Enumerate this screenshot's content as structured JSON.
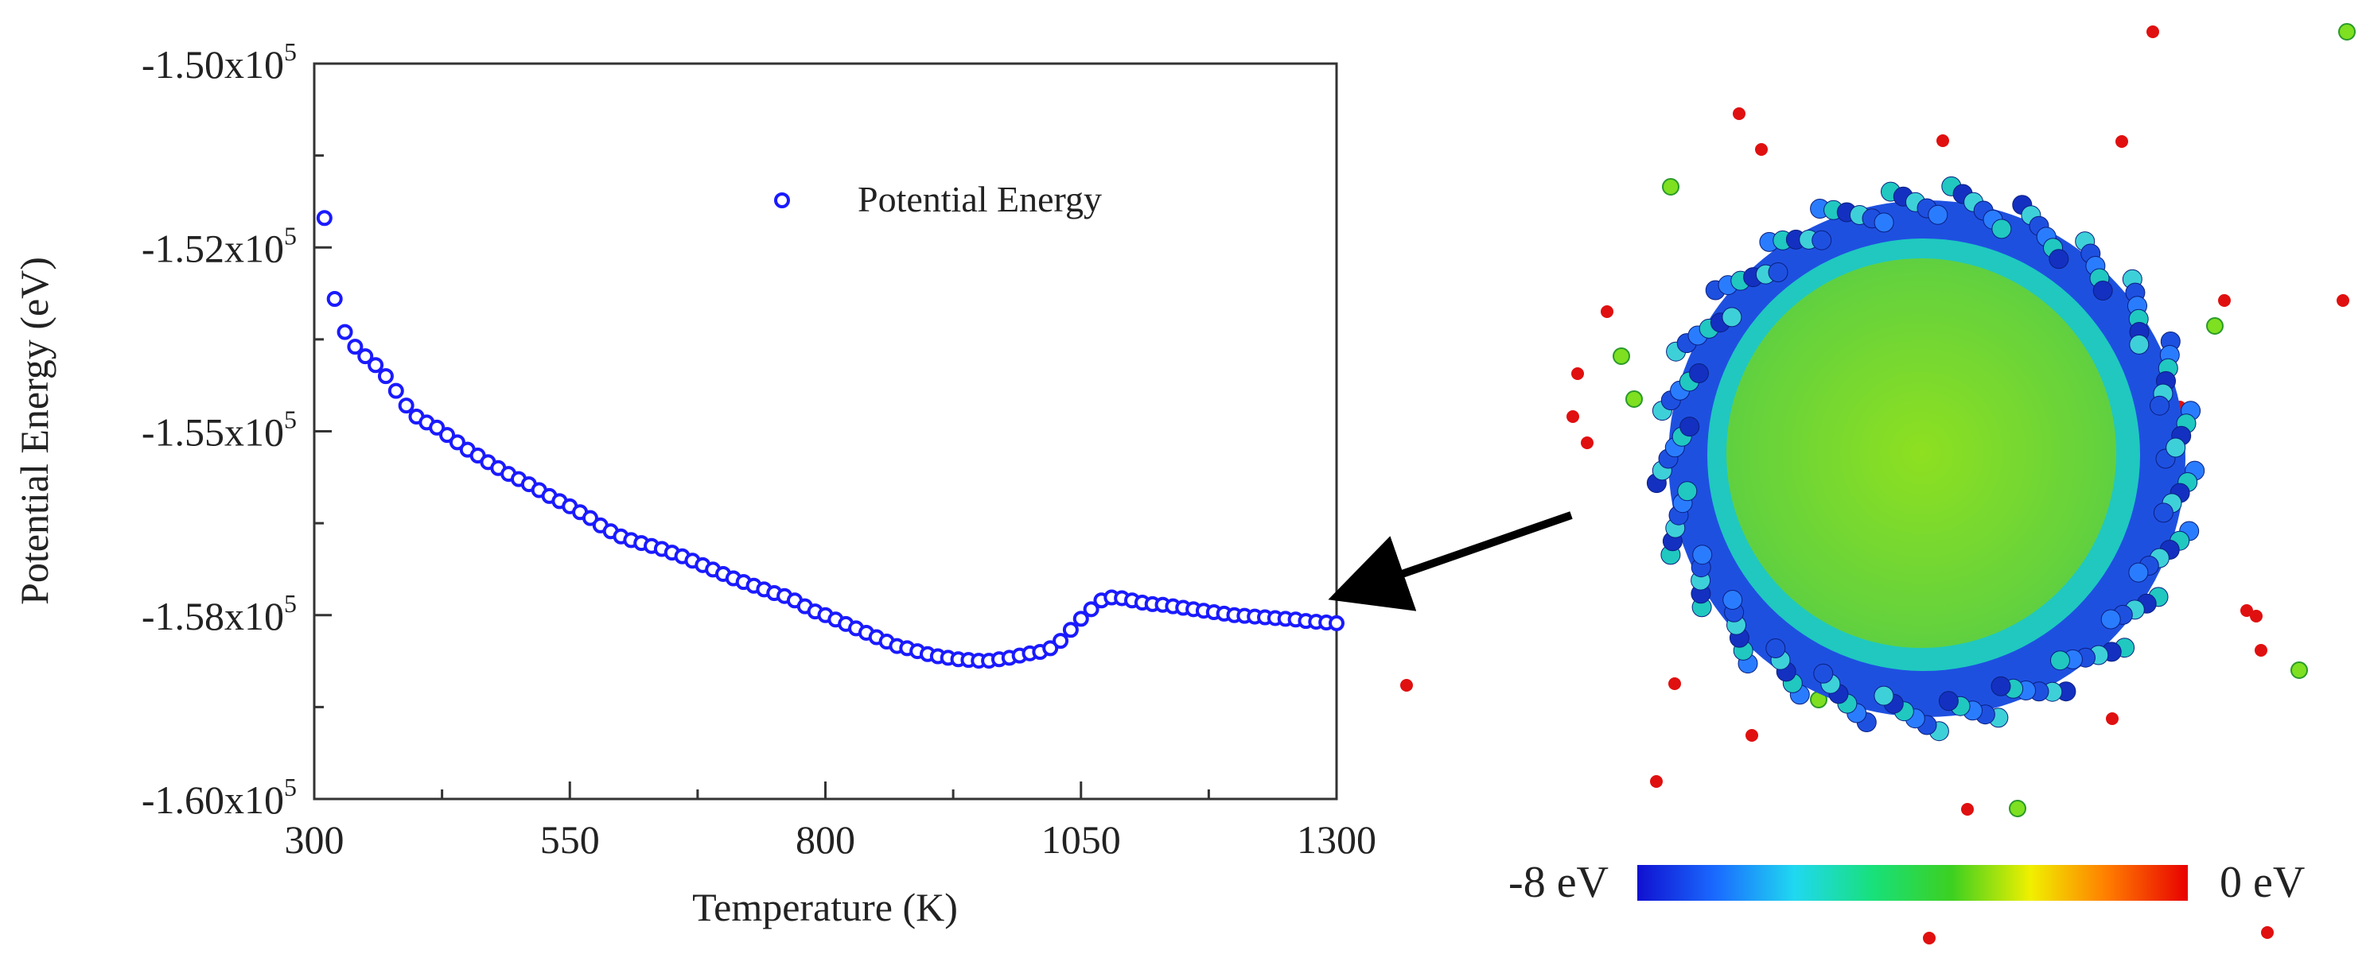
{
  "chart_data": {
    "type": "scatter",
    "xlabel": "Temperature (K)",
    "ylabel": "Potential Energy (eV)",
    "xlim": [
      300,
      1300
    ],
    "ylim": [
      -160000,
      -150000
    ],
    "xticks": [
      "300",
      "550",
      "800",
      "1050",
      "1300"
    ],
    "yticks": [
      {
        "value": -150000,
        "mantissa": "-1.50x10",
        "exp": "5"
      },
      {
        "value": -152500,
        "mantissa": "-1.52x10",
        "exp": "5"
      },
      {
        "value": -155000,
        "mantissa": "-1.55x10",
        "exp": "5"
      },
      {
        "value": -157500,
        "mantissa": "-1.58x10",
        "exp": "5"
      },
      {
        "value": -160000,
        "mantissa": "-1.60x10",
        "exp": "5"
      }
    ],
    "legend": {
      "label": "Potential Energy",
      "position": "top-right"
    },
    "series": [
      {
        "name": "Potential Energy",
        "color": "#1a1aff",
        "points": [
          [
            310,
            -152100
          ],
          [
            320,
            -153200
          ],
          [
            330,
            -153650
          ],
          [
            340,
            -153850
          ],
          [
            350,
            -153980
          ],
          [
            360,
            -154100
          ],
          [
            370,
            -154250
          ],
          [
            380,
            -154450
          ],
          [
            390,
            -154650
          ],
          [
            400,
            -154800
          ],
          [
            410,
            -154880
          ],
          [
            420,
            -154950
          ],
          [
            430,
            -155050
          ],
          [
            440,
            -155150
          ],
          [
            450,
            -155250
          ],
          [
            460,
            -155330
          ],
          [
            470,
            -155420
          ],
          [
            480,
            -155500
          ],
          [
            490,
            -155580
          ],
          [
            500,
            -155650
          ],
          [
            510,
            -155720
          ],
          [
            520,
            -155800
          ],
          [
            530,
            -155880
          ],
          [
            540,
            -155950
          ],
          [
            550,
            -156020
          ],
          [
            560,
            -156100
          ],
          [
            570,
            -156180
          ],
          [
            580,
            -156280
          ],
          [
            590,
            -156360
          ],
          [
            600,
            -156430
          ],
          [
            610,
            -156480
          ],
          [
            620,
            -156520
          ],
          [
            630,
            -156560
          ],
          [
            640,
            -156600
          ],
          [
            650,
            -156650
          ],
          [
            660,
            -156700
          ],
          [
            670,
            -156760
          ],
          [
            680,
            -156820
          ],
          [
            690,
            -156880
          ],
          [
            700,
            -156940
          ],
          [
            710,
            -157000
          ],
          [
            720,
            -157050
          ],
          [
            730,
            -157100
          ],
          [
            740,
            -157150
          ],
          [
            750,
            -157200
          ],
          [
            760,
            -157240
          ],
          [
            770,
            -157300
          ],
          [
            780,
            -157380
          ],
          [
            790,
            -157450
          ],
          [
            800,
            -157500
          ],
          [
            810,
            -157560
          ],
          [
            820,
            -157620
          ],
          [
            830,
            -157680
          ],
          [
            840,
            -157740
          ],
          [
            850,
            -157800
          ],
          [
            860,
            -157860
          ],
          [
            870,
            -157920
          ],
          [
            880,
            -157950
          ],
          [
            890,
            -157990
          ],
          [
            900,
            -158030
          ],
          [
            910,
            -158060
          ],
          [
            920,
            -158080
          ],
          [
            930,
            -158100
          ],
          [
            940,
            -158110
          ],
          [
            950,
            -158120
          ],
          [
            960,
            -158120
          ],
          [
            970,
            -158100
          ],
          [
            980,
            -158080
          ],
          [
            990,
            -158050
          ],
          [
            1000,
            -158020
          ],
          [
            1010,
            -158000
          ],
          [
            1020,
            -157950
          ],
          [
            1030,
            -157850
          ],
          [
            1040,
            -157700
          ],
          [
            1050,
            -157550
          ],
          [
            1060,
            -157420
          ],
          [
            1070,
            -157300
          ],
          [
            1080,
            -157260
          ],
          [
            1090,
            -157270
          ],
          [
            1100,
            -157300
          ],
          [
            1110,
            -157330
          ],
          [
            1120,
            -157350
          ],
          [
            1130,
            -157360
          ],
          [
            1140,
            -157380
          ],
          [
            1150,
            -157400
          ],
          [
            1160,
            -157420
          ],
          [
            1170,
            -157440
          ],
          [
            1180,
            -157460
          ],
          [
            1190,
            -157480
          ],
          [
            1200,
            -157500
          ],
          [
            1210,
            -157510
          ],
          [
            1220,
            -157520
          ],
          [
            1230,
            -157530
          ],
          [
            1240,
            -157540
          ],
          [
            1250,
            -157550
          ],
          [
            1260,
            -157560
          ],
          [
            1270,
            -157580
          ],
          [
            1280,
            -157590
          ],
          [
            1290,
            -157600
          ],
          [
            1300,
            -157610
          ]
        ]
      }
    ]
  },
  "colorbar": {
    "min_label": "-8 eV",
    "max_label": "0 eV",
    "colors": [
      "#1010d0",
      "#1a6bff",
      "#20d8f0",
      "#18e07a",
      "#3cd020",
      "#f0f000",
      "#ff7a00",
      "#e80000"
    ]
  },
  "nanoparticle": {
    "core_color": "#8ee020",
    "shell_color": "#1e50e0",
    "mid_color": "#20c8c0",
    "outlier_color": "#e01010",
    "outlier_green_color": "#7ee020"
  }
}
